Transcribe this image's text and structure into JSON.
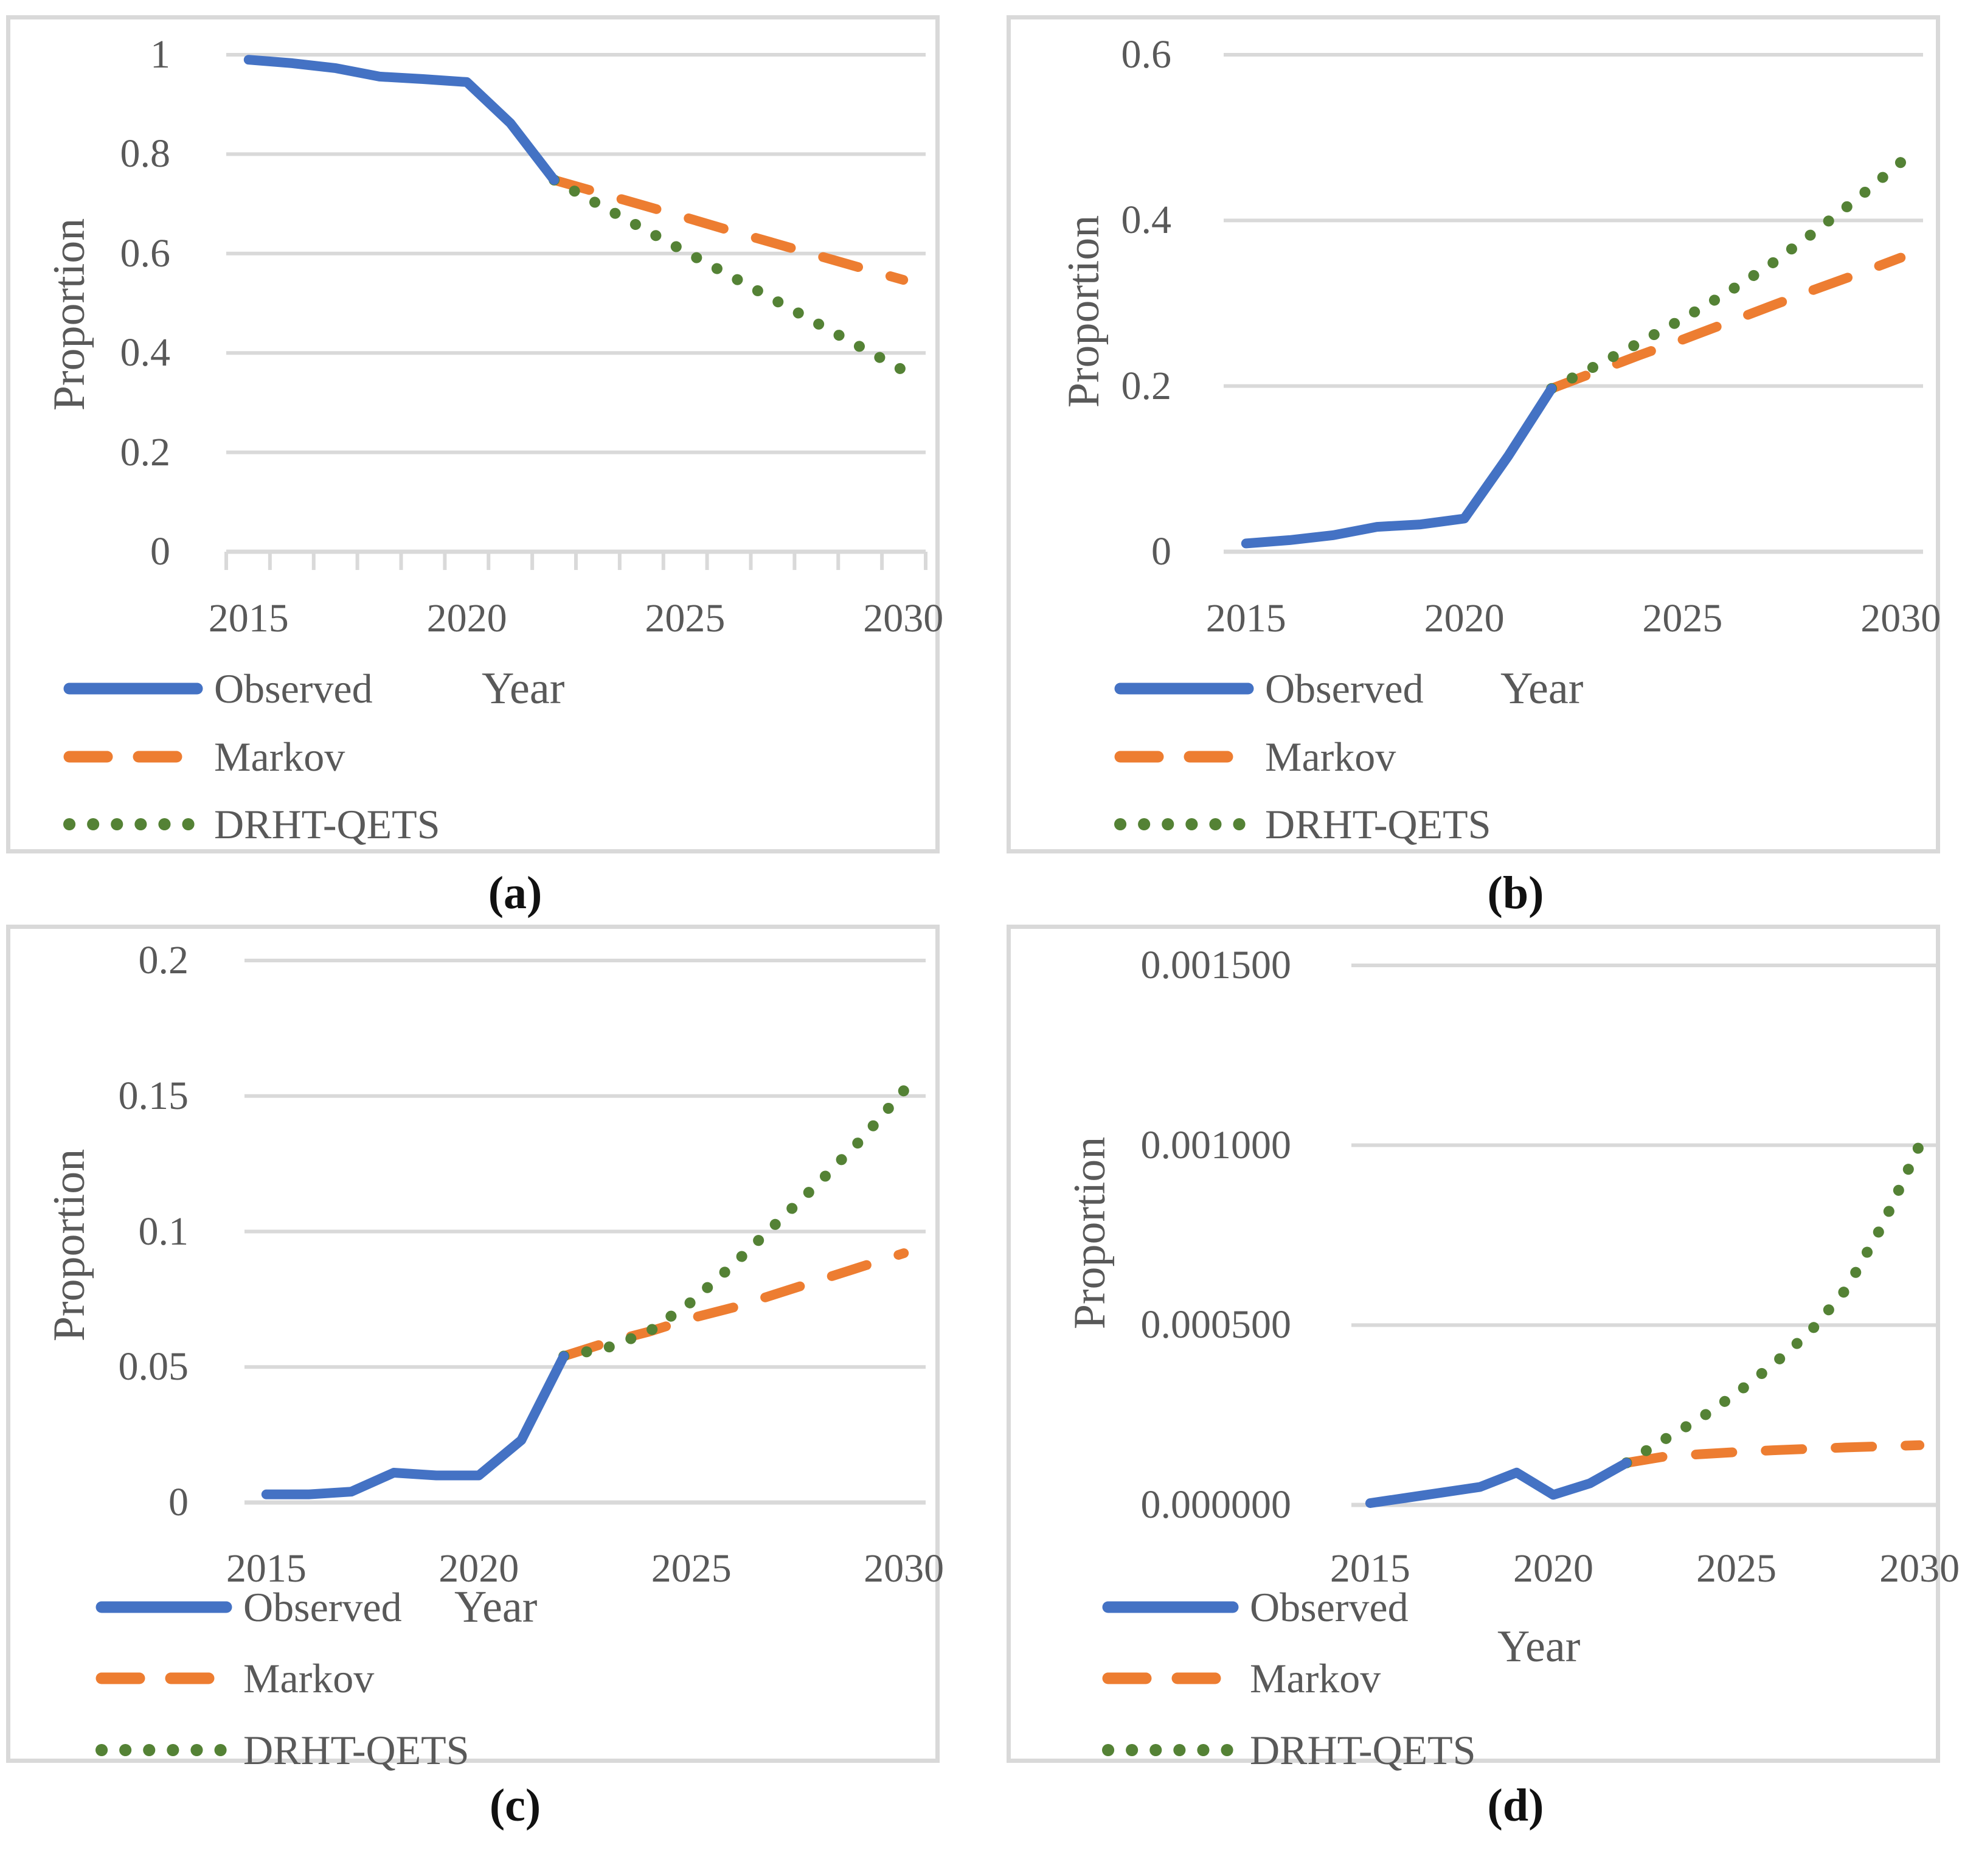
{
  "figure_title": "",
  "axis_text_color": "#595959",
  "gridline_color": "#d9d9d9",
  "chart_data": [
    {
      "id": "a",
      "caption": "(a)",
      "type": "line",
      "xlabel": "Year",
      "ylabel": "Proportion",
      "grid": "horizontal",
      "legend_position": "bottom-left",
      "x_range": [
        2015,
        2030
      ],
      "ylim": [
        0,
        1.05
      ],
      "y_max_grid": 1,
      "x_minor_ticks": true,
      "y_ticks": [
        {
          "v": 1,
          "label": "1"
        },
        {
          "v": 0.8,
          "label": "0.8"
        },
        {
          "v": 0.6,
          "label": "0.6"
        },
        {
          "v": 0.4,
          "label": "0.4"
        },
        {
          "v": 0.2,
          "label": "0.2"
        },
        {
          "v": 0,
          "label": "0"
        }
      ],
      "x_ticks": [
        {
          "v": 2015,
          "label": "2015"
        },
        {
          "v": 2020,
          "label": "2020"
        },
        {
          "v": 2025,
          "label": "2025"
        },
        {
          "v": 2030,
          "label": "2030"
        }
      ],
      "series": [
        {
          "name": "Observed",
          "style": "solid",
          "color": "#4472C4",
          "x": [
            2015,
            2016,
            2017,
            2018,
            2019,
            2020,
            2021,
            2022
          ],
          "y": [
            0.99,
            0.983,
            0.973,
            0.956,
            0.951,
            0.945,
            0.862,
            0.748
          ]
        },
        {
          "name": "Markov",
          "style": "dashed",
          "color": "#ED7D31",
          "x": [
            2022,
            2023,
            2024,
            2025,
            2026,
            2027,
            2028,
            2029,
            2030
          ],
          "y": [
            0.748,
            0.723,
            0.698,
            0.673,
            0.647,
            0.622,
            0.597,
            0.572,
            0.547
          ]
        },
        {
          "name": "DRHT-QETS",
          "style": "dotted",
          "color": "#548235",
          "x": [
            2022,
            2023,
            2024,
            2025,
            2026,
            2027,
            2028,
            2029,
            2030
          ],
          "y": [
            0.748,
            0.7,
            0.652,
            0.604,
            0.557,
            0.509,
            0.461,
            0.413,
            0.365
          ]
        }
      ],
      "legend": [
        {
          "label": "Observed",
          "style": "solid",
          "color": "#4472C4"
        },
        {
          "label": "Markov",
          "style": "dashed",
          "color": "#ED7D31"
        },
        {
          "label": "DRHT-QETS",
          "style": "dotted",
          "color": "#548235"
        }
      ]
    },
    {
      "id": "b",
      "caption": "(b)",
      "type": "line",
      "xlabel": "Year",
      "ylabel": "Proportion",
      "grid": "horizontal",
      "legend_position": "bottom-left",
      "x_range": [
        2015,
        2030
      ],
      "ylim": [
        0,
        0.63
      ],
      "y_max_grid": 0.6,
      "x_minor_ticks": false,
      "y_ticks": [
        {
          "v": 0.6,
          "label": "0.6"
        },
        {
          "v": 0.4,
          "label": "0.4"
        },
        {
          "v": 0.2,
          "label": "0.2"
        },
        {
          "v": 0,
          "label": "0"
        }
      ],
      "x_ticks": [
        {
          "v": 2015,
          "label": "2015"
        },
        {
          "v": 2020,
          "label": "2020"
        },
        {
          "v": 2025,
          "label": "2025"
        },
        {
          "v": 2030,
          "label": "2030"
        }
      ],
      "series": [
        {
          "name": "Observed",
          "style": "solid",
          "color": "#4472C4",
          "x": [
            2015,
            2016,
            2017,
            2018,
            2019,
            2020,
            2021,
            2022
          ],
          "y": [
            0.01,
            0.014,
            0.02,
            0.03,
            0.033,
            0.04,
            0.115,
            0.197
          ]
        },
        {
          "name": "Markov",
          "style": "dashed",
          "color": "#ED7D31",
          "x": [
            2022,
            2023,
            2024,
            2025,
            2026,
            2027,
            2028,
            2029,
            2030
          ],
          "y": [
            0.197,
            0.217,
            0.237,
            0.256,
            0.276,
            0.296,
            0.316,
            0.335,
            0.355
          ]
        },
        {
          "name": "DRHT-QETS",
          "style": "dotted",
          "color": "#548235",
          "x": [
            2022,
            2023,
            2024,
            2025,
            2026,
            2027,
            2028,
            2029,
            2030
          ],
          "y": [
            0.197,
            0.224,
            0.252,
            0.281,
            0.312,
            0.346,
            0.385,
            0.426,
            0.47
          ]
        }
      ],
      "legend": [
        {
          "label": "Observed",
          "style": "solid",
          "color": "#4472C4"
        },
        {
          "label": "Markov",
          "style": "dashed",
          "color": "#ED7D31"
        },
        {
          "label": "DRHT-QETS",
          "style": "dotted",
          "color": "#548235"
        }
      ]
    },
    {
      "id": "c",
      "caption": "(c)",
      "type": "line",
      "xlabel": "Year",
      "ylabel": "Proportion",
      "grid": "horizontal",
      "legend_position": "bottom-left",
      "x_range": [
        2015,
        2030
      ],
      "ylim": [
        0,
        0.21
      ],
      "y_max_grid": 0.2,
      "x_minor_ticks": false,
      "y_ticks": [
        {
          "v": 0.2,
          "label": "0.2"
        },
        {
          "v": 0.15,
          "label": "0.15"
        },
        {
          "v": 0.1,
          "label": "0.1"
        },
        {
          "v": 0.05,
          "label": "0.05"
        },
        {
          "v": 0,
          "label": "0"
        }
      ],
      "x_ticks": [
        {
          "v": 2015,
          "label": "2015"
        },
        {
          "v": 2020,
          "label": "2020"
        },
        {
          "v": 2025,
          "label": "2025"
        },
        {
          "v": 2030,
          "label": "2030"
        }
      ],
      "series": [
        {
          "name": "Observed",
          "style": "solid",
          "color": "#4472C4",
          "x": [
            2015,
            2016,
            2017,
            2018,
            2019,
            2020,
            2021,
            2022
          ],
          "y": [
            0.003,
            0.003,
            0.004,
            0.011,
            0.01,
            0.01,
            0.023,
            0.054
          ]
        },
        {
          "name": "Markov",
          "style": "dashed",
          "color": "#ED7D31",
          "x": [
            2022,
            2023,
            2024,
            2025,
            2026,
            2027,
            2028,
            2029,
            2030
          ],
          "y": [
            0.054,
            0.059,
            0.063,
            0.068,
            0.072,
            0.077,
            0.082,
            0.087,
            0.092
          ]
        },
        {
          "name": "DRHT-QETS",
          "style": "dotted",
          "color": "#548235",
          "x": [
            2022,
            2023,
            2024,
            2025,
            2026,
            2027,
            2028,
            2029,
            2030
          ],
          "y": [
            0.054,
            0.057,
            0.063,
            0.074,
            0.088,
            0.103,
            0.118,
            0.134,
            0.152
          ]
        }
      ],
      "legend": [
        {
          "label": "Observed",
          "style": "solid",
          "color": "#4472C4"
        },
        {
          "label": "Markov",
          "style": "dashed",
          "color": "#ED7D31"
        },
        {
          "label": "DRHT-QETS",
          "style": "dotted",
          "color": "#548235"
        }
      ]
    },
    {
      "id": "d",
      "caption": "(d)",
      "type": "line",
      "xlabel": "Year",
      "ylabel": "Proportion",
      "grid": "horizontal",
      "legend_position": "bottom-left",
      "x_range": [
        2015,
        2030
      ],
      "ylim": [
        0,
        0.001575
      ],
      "y_max_grid": 0.0015,
      "x_minor_ticks": false,
      "y_ticks": [
        {
          "v": 0.0015,
          "label": "0.001500"
        },
        {
          "v": 0.001,
          "label": "0.001000"
        },
        {
          "v": 0.0005,
          "label": "0.000500"
        },
        {
          "v": 0,
          "label": "0.000000"
        }
      ],
      "x_ticks": [
        {
          "v": 2015,
          "label": "2015"
        },
        {
          "v": 2020,
          "label": "2020"
        },
        {
          "v": 2025,
          "label": "2025"
        },
        {
          "v": 2030,
          "label": "2030"
        }
      ],
      "series": [
        {
          "name": "Observed",
          "style": "solid",
          "color": "#4472C4",
          "x": [
            2015,
            2016,
            2017,
            2018,
            2019,
            2020,
            2021,
            2022
          ],
          "y": [
            5e-06,
            2e-05,
            3.5e-05,
            5e-05,
            9e-05,
            2.8e-05,
            6e-05,
            0.000117
          ]
        },
        {
          "name": "Markov",
          "style": "dashed",
          "color": "#ED7D31",
          "x": [
            2022,
            2023,
            2024,
            2025,
            2026,
            2027,
            2028,
            2029,
            2030
          ],
          "y": [
            0.000117,
            0.000134,
            0.000141,
            0.000147,
            0.000152,
            0.000156,
            0.00016,
            0.000163,
            0.000166
          ]
        },
        {
          "name": "DRHT-QETS",
          "style": "dotted",
          "color": "#548235",
          "x": [
            2022,
            2023,
            2024,
            2025,
            2026,
            2027,
            2028,
            2029,
            2030
          ],
          "y": [
            0.000117,
            0.00018,
            0.00024,
            0.00031,
            0.00039,
            0.00048,
            0.0006,
            0.00078,
            0.001
          ]
        }
      ],
      "legend": [
        {
          "label": "Observed",
          "style": "solid",
          "color": "#4472C4"
        },
        {
          "label": "Markov",
          "style": "dashed",
          "color": "#ED7D31"
        },
        {
          "label": "DRHT-QETS",
          "style": "dotted",
          "color": "#548235"
        }
      ]
    }
  ]
}
